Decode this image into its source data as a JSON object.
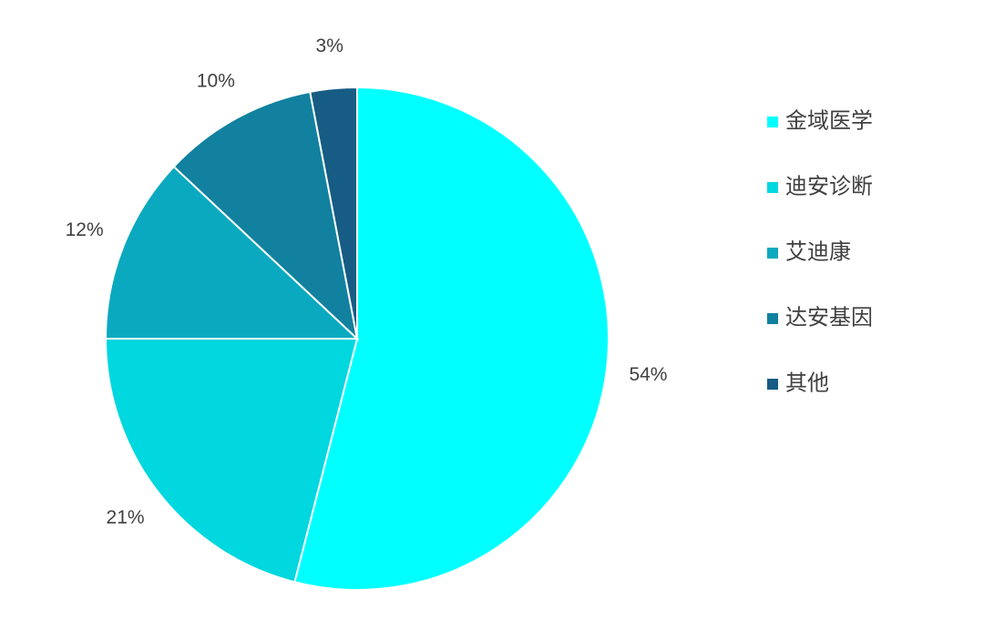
{
  "chart_data": {
    "type": "pie",
    "categories": [
      "金域医学",
      "迪安诊断",
      "艾迪康",
      "达安基因",
      "其他"
    ],
    "values": [
      54,
      21,
      12,
      10,
      3
    ],
    "value_labels": [
      "54%",
      "21%",
      "12%",
      "10%",
      "3%"
    ],
    "colors": [
      "#00FFFF",
      "#00D7DF",
      "#0BA9BF",
      "#11819F",
      "#165C84"
    ],
    "legend": "right"
  }
}
